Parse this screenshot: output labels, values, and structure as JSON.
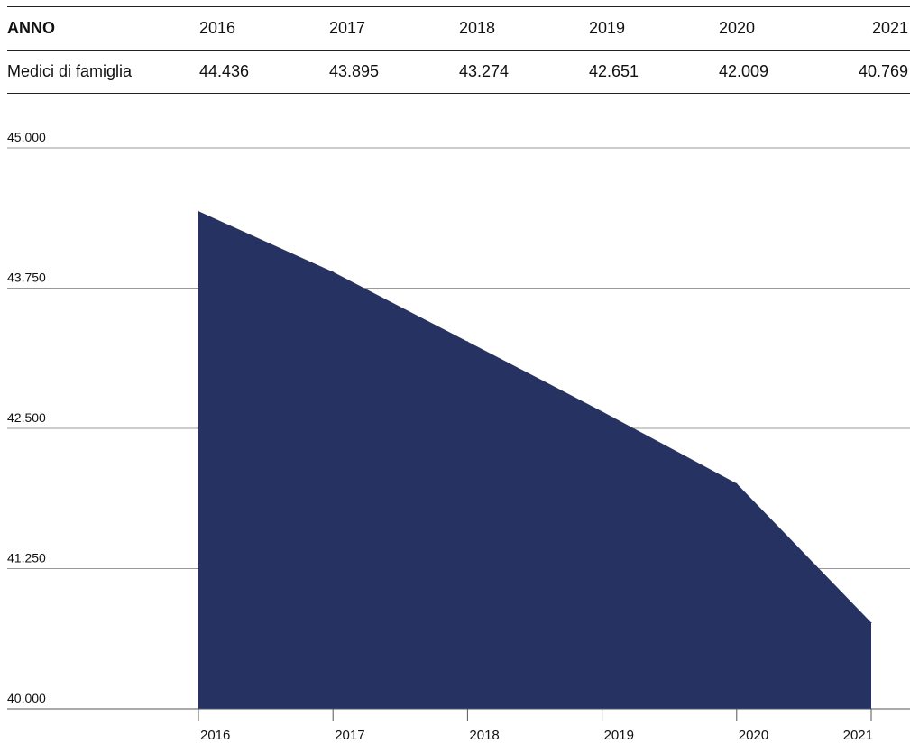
{
  "table": {
    "header_label": "ANNO",
    "row_label": "Medici di famiglia",
    "years": [
      "2016",
      "2017",
      "2018",
      "2019",
      "2020",
      "2021"
    ],
    "values": [
      "44.436",
      "43.895",
      "43.274",
      "42.651",
      "42.009",
      "40.769"
    ]
  },
  "colors": {
    "area": "#263262",
    "grid": "#999999",
    "axis": "#555555",
    "text": "#111111"
  },
  "chart_data": {
    "type": "area",
    "x": [
      "2016",
      "2017",
      "2018",
      "2019",
      "2020",
      "2021"
    ],
    "series": [
      {
        "name": "Medici di famiglia",
        "values": [
          44436,
          43895,
          43274,
          42651,
          42009,
          40769
        ]
      }
    ],
    "y_ticks": [
      40000,
      41250,
      42500,
      43750,
      45000
    ],
    "y_tick_labels": [
      "40.000",
      "41.250",
      "42.500",
      "43.750",
      "45.000"
    ],
    "ylim": [
      40000,
      45000
    ],
    "grid": true,
    "legend": "none"
  }
}
